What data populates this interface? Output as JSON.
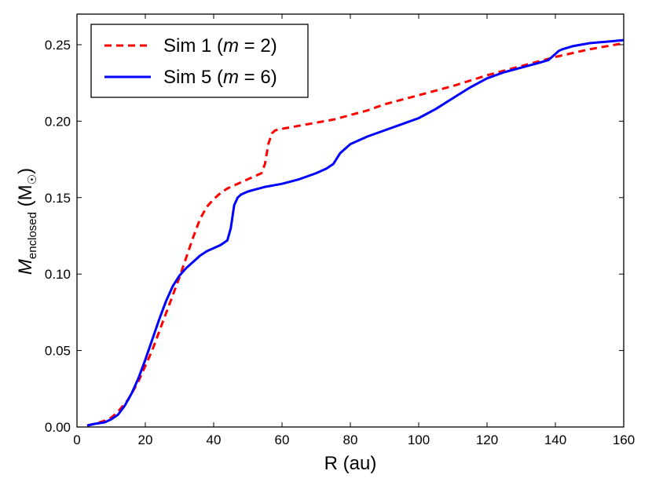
{
  "chart_data": {
    "type": "line",
    "xlabel": "R (au)",
    "ylabel": {
      "main": "M",
      "subscript": "enclosed",
      "unit_open": " (M",
      "unit_symbol": "☉",
      "unit_close": ")"
    },
    "xlim": [
      0,
      160
    ],
    "ylim": [
      0.0,
      0.27
    ],
    "xticks": [
      0,
      20,
      40,
      60,
      80,
      100,
      120,
      140,
      160
    ],
    "yticks": [
      0.0,
      0.05,
      0.1,
      0.15,
      0.2,
      0.25
    ],
    "ytick_labels": [
      "0.00",
      "0.05",
      "0.10",
      "0.15",
      "0.20",
      "0.25"
    ],
    "grid": false,
    "legend_placement": "top-left",
    "series": [
      {
        "name": "Sim 1 (m = 2)",
        "name_parts": [
          "Sim 1 (",
          "m",
          " = 2)"
        ],
        "color": "#ff0000",
        "style": "dashed",
        "x": [
          3,
          5,
          8,
          10,
          12,
          15,
          18,
          20,
          22,
          24,
          26,
          28,
          30,
          32,
          34,
          36,
          38,
          40,
          42,
          44,
          46,
          48,
          50,
          52,
          54,
          55,
          56,
          57,
          58,
          60,
          65,
          70,
          75,
          80,
          85,
          90,
          95,
          100,
          110,
          120,
          130,
          140,
          150,
          160
        ],
        "y": [
          0.001,
          0.002,
          0.004,
          0.006,
          0.01,
          0.018,
          0.03,
          0.04,
          0.05,
          0.062,
          0.074,
          0.086,
          0.098,
          0.111,
          0.124,
          0.136,
          0.144,
          0.149,
          0.153,
          0.156,
          0.158,
          0.16,
          0.162,
          0.164,
          0.166,
          0.172,
          0.185,
          0.192,
          0.194,
          0.195,
          0.197,
          0.199,
          0.201,
          0.204,
          0.207,
          0.211,
          0.214,
          0.217,
          0.223,
          0.23,
          0.236,
          0.242,
          0.247,
          0.251
        ]
      },
      {
        "name": "Sim 5 (m = 6)",
        "name_parts": [
          "Sim 5 (",
          "m",
          " = 6)"
        ],
        "color": "#0000ff",
        "style": "solid",
        "x": [
          3,
          5,
          8,
          10,
          12,
          14,
          16,
          18,
          20,
          22,
          24,
          26,
          28,
          30,
          32,
          34,
          36,
          38,
          40,
          42,
          44,
          45,
          46,
          47,
          48,
          50,
          55,
          60,
          65,
          70,
          73,
          75,
          77,
          80,
          85,
          90,
          95,
          100,
          105,
          110,
          115,
          120,
          125,
          130,
          135,
          138,
          140,
          141,
          142,
          145,
          150,
          155,
          160
        ],
        "y": [
          0.001,
          0.002,
          0.003,
          0.005,
          0.008,
          0.014,
          0.022,
          0.032,
          0.044,
          0.057,
          0.07,
          0.082,
          0.092,
          0.099,
          0.104,
          0.108,
          0.112,
          0.115,
          0.117,
          0.119,
          0.122,
          0.13,
          0.145,
          0.15,
          0.152,
          0.154,
          0.157,
          0.159,
          0.162,
          0.166,
          0.169,
          0.172,
          0.179,
          0.185,
          0.19,
          0.194,
          0.198,
          0.202,
          0.208,
          0.215,
          0.222,
          0.228,
          0.232,
          0.235,
          0.238,
          0.24,
          0.244,
          0.246,
          0.247,
          0.249,
          0.251,
          0.252,
          0.253
        ]
      }
    ]
  }
}
